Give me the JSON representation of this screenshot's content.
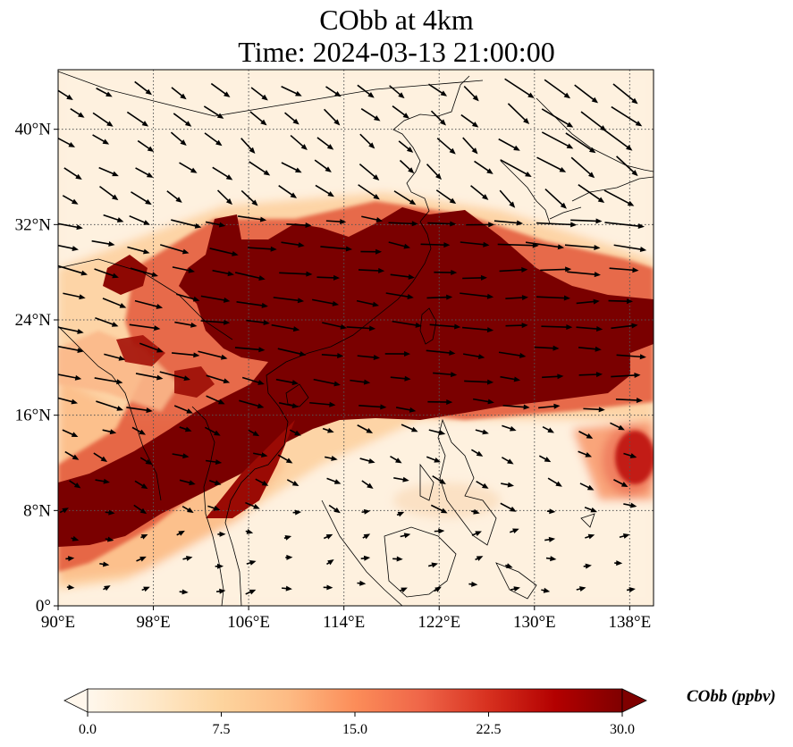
{
  "figure": {
    "title": "CObb at 4km",
    "subtitle": "Time: 2024-03-13 21:00:00"
  },
  "map": {
    "lon_range": [
      90,
      140
    ],
    "lat_range": [
      0,
      45
    ],
    "gridlines": "dotted",
    "x_ticks": [
      "90°E",
      "98°E",
      "106°E",
      "114°E",
      "122°E",
      "130°E",
      "138°E"
    ],
    "x_tick_values": [
      90,
      98,
      106,
      114,
      122,
      130,
      138
    ],
    "y_ticks": [
      "0°",
      "8°N",
      "16°N",
      "24°N",
      "32°N",
      "40°N"
    ],
    "y_tick_values": [
      0,
      8,
      16,
      24,
      32,
      40
    ],
    "wind_vectors": "black arrows",
    "coastlines": "thin black lines"
  },
  "colorbar": {
    "label": "CObb (ppbv)",
    "min": 0,
    "max": 30,
    "extend": "both",
    "orientation": "horizontal",
    "tick_labels": [
      "0.0",
      "7.5",
      "15.0",
      "22.5",
      "30.0"
    ],
    "tick_values": [
      0,
      7.5,
      15,
      22.5,
      30
    ],
    "colors": [
      "#fff7ec",
      "#fee8c8",
      "#fdd49e",
      "#fdbb84",
      "#fc8d59",
      "#ef6548",
      "#d7301f",
      "#b30000",
      "#7f0000"
    ]
  }
}
